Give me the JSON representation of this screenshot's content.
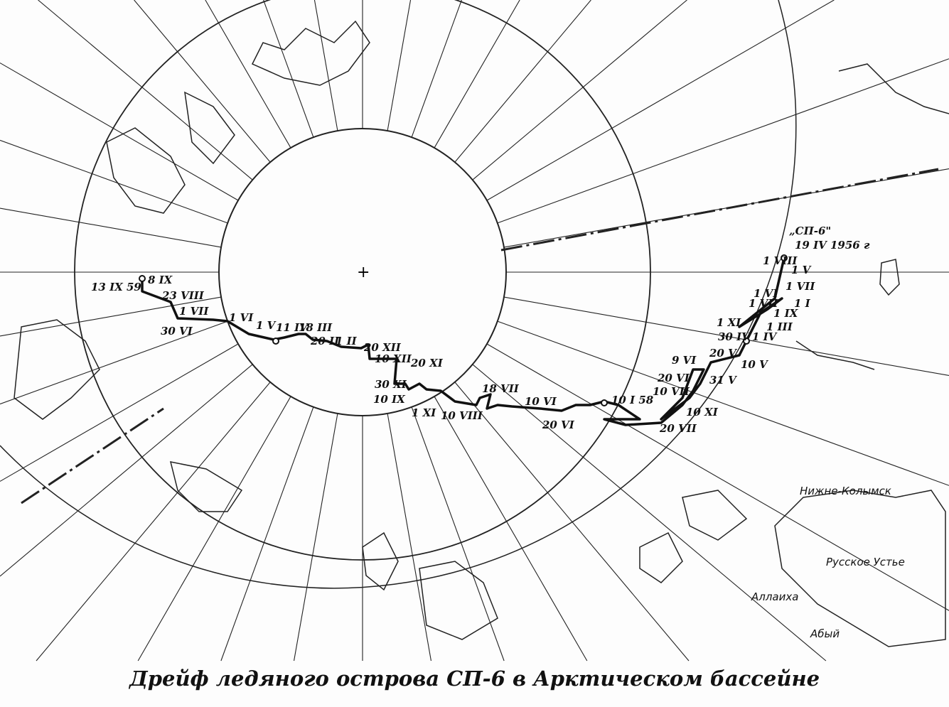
{
  "caption": "Дрейф ледяного острова СП-6 в Арктическом бассейне",
  "station": {
    "name": "„СП-6\"",
    "start_date": "19 IV 1956 г"
  },
  "track_labels": [
    "1 VIII",
    "1 V",
    "1 VII",
    "1 VI",
    "1 VII",
    "1 I",
    "1 IX",
    "1 XI",
    "1 III",
    "30 IV",
    "1 IV",
    "20 V",
    "10 V",
    "31 V",
    "9 VI",
    "20 VI",
    "10 VII",
    "10 XI",
    "20 VII",
    "10 I 58",
    "20 VI",
    "10 VI",
    "18 VII",
    "10 VIII",
    "1 XI",
    "10 IX",
    "30 XI",
    "20 XI",
    "10 XII",
    "20 XII",
    "20 II",
    "1 II",
    "18 III",
    "11 IV",
    "1 V",
    "1 VI",
    "30 VI",
    "1 VII",
    "23 VIII",
    "8 IX",
    "13 IX 59"
  ],
  "places": [
    "Нижне-Колымск",
    "Русское Устье",
    "Аллаиха",
    "Абый"
  ],
  "colors": {
    "ink": "#111111",
    "paper": "#fdfdfd"
  }
}
